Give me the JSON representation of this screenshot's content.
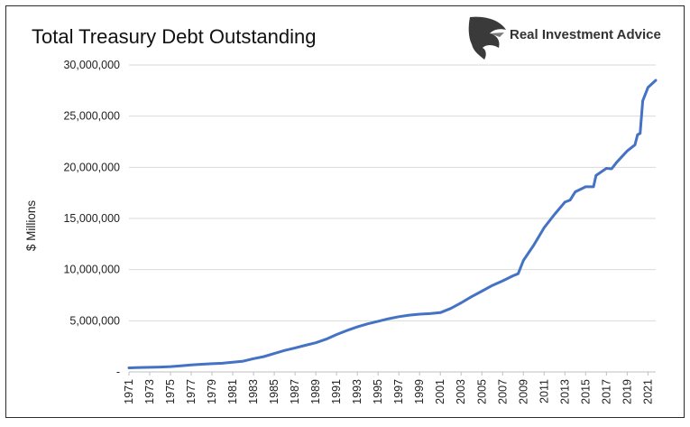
{
  "header": {
    "title": "Total Treasury Debt Outstanding",
    "brand": "Real Investment Advice",
    "logo_icon": "eagle-head-icon"
  },
  "colors": {
    "line": "#4472C4",
    "grid": "#d9d9d9",
    "axis": "#bfbfbf"
  },
  "chart_data": {
    "type": "line",
    "title": "Total Treasury Debt Outstanding",
    "xlabel": "",
    "ylabel": "$ Millions",
    "ylim": [
      0,
      30000000
    ],
    "yticks": [
      0,
      5000000,
      10000000,
      15000000,
      20000000,
      25000000,
      30000000
    ],
    "ytick_labels": [
      "-",
      "5,000,000",
      "10,000,000",
      "15,000,000",
      "20,000,000",
      "25,000,000",
      "30,000,000"
    ],
    "xlim": [
      1971,
      2021.75
    ],
    "xtick_labels": [
      "1971",
      "1973",
      "1975",
      "1977",
      "1979",
      "1981",
      "1983",
      "1985",
      "1987",
      "1989",
      "1991",
      "1993",
      "1995",
      "1997",
      "1999",
      "2001",
      "2003",
      "2005",
      "2007",
      "2009",
      "2011",
      "2013",
      "2015",
      "2017",
      "2019",
      "2021"
    ],
    "grid": true,
    "legend": "none",
    "series": [
      {
        "x": [
          1971,
          1972,
          1973,
          1974,
          1975,
          1976,
          1977,
          1978,
          1979,
          1980,
          1981,
          1982,
          1983,
          1984,
          1985,
          1986,
          1987,
          1988,
          1989,
          1990,
          1991,
          1992,
          1993,
          1994,
          1995,
          1996,
          1997,
          1998,
          1999,
          2000,
          2001,
          2002,
          2003,
          2004,
          2005,
          2006,
          2007,
          2008,
          2008.5,
          2009,
          2010,
          2011,
          2012,
          2013,
          2013.5,
          2014,
          2015,
          2015.75,
          2016,
          2017,
          2017.5,
          2018,
          2019,
          2019.5,
          2019.75,
          2020,
          2020.25,
          2020.5,
          2021,
          2021.75
        ],
        "values": [
          400000,
          430000,
          450000,
          480000,
          520000,
          600000,
          680000,
          750000,
          800000,
          850000,
          950000,
          1050000,
          1300000,
          1500000,
          1800000,
          2100000,
          2350000,
          2600000,
          2850000,
          3200000,
          3650000,
          4050000,
          4400000,
          4700000,
          4950000,
          5200000,
          5400000,
          5550000,
          5650000,
          5700000,
          5800000,
          6200000,
          6750000,
          7350000,
          7900000,
          8450000,
          8900000,
          9400000,
          9600000,
          10900000,
          12400000,
          14100000,
          15400000,
          16600000,
          16800000,
          17600000,
          18100000,
          18100000,
          19200000,
          19900000,
          19850000,
          20500000,
          21600000,
          22000000,
          22200000,
          23200000,
          23300000,
          26500000,
          27800000,
          28500000
        ]
      }
    ]
  }
}
